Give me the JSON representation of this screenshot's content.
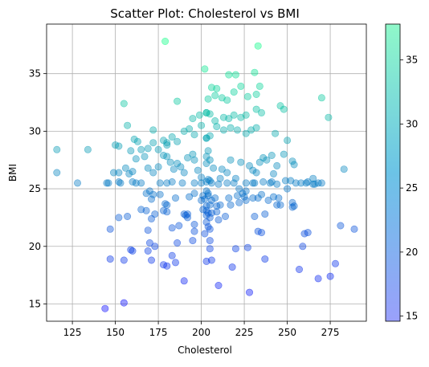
{
  "chart_data": {
    "type": "scatter",
    "title": "Scatter Plot: Cholesterol vs BMI",
    "xlabel": "Cholesterol",
    "ylabel": "BMI",
    "xlim": [
      110,
      296
    ],
    "ylim": [
      13.5,
      39.3
    ],
    "xticks": [
      125,
      150,
      175,
      200,
      225,
      250,
      275
    ],
    "yticks": [
      15,
      20,
      25,
      30,
      35
    ],
    "grid": true,
    "colormap": "winter",
    "point_alpha": 0.4,
    "colorbar": {
      "min": 14.6,
      "max": 37.8,
      "ticks": [
        15,
        20,
        25,
        30,
        35
      ]
    },
    "points": [
      [
        144,
        14.6
      ],
      [
        155,
        15.1
      ],
      [
        228,
        16.0
      ],
      [
        210,
        16.6
      ],
      [
        268,
        17.2
      ],
      [
        275,
        17.4
      ],
      [
        190,
        17.0
      ],
      [
        257,
        18.0
      ],
      [
        218,
        18.2
      ],
      [
        278,
        18.5
      ],
      [
        203,
        18.7
      ],
      [
        206,
        18.8
      ],
      [
        237,
        18.9
      ],
      [
        147,
        18.9
      ],
      [
        155,
        18.8
      ],
      [
        171,
        18.8
      ],
      [
        178,
        18.4
      ],
      [
        180,
        18.3
      ],
      [
        185,
        18.6
      ],
      [
        183,
        19.2
      ],
      [
        169,
        19.6
      ],
      [
        159,
        19.7
      ],
      [
        160,
        19.6
      ],
      [
        205,
        19.8
      ],
      [
        220,
        19.8
      ],
      [
        227,
        19.9
      ],
      [
        259,
        20.0
      ],
      [
        170,
        20.3
      ],
      [
        173,
        20.0
      ],
      [
        186,
        20.3
      ],
      [
        195,
        20.5
      ],
      [
        281,
        21.8
      ],
      [
        289,
        21.5
      ],
      [
        233,
        21.3
      ],
      [
        235,
        21.2
      ],
      [
        262,
        21.2
      ],
      [
        260,
        21.1
      ],
      [
        196,
        21.3
      ],
      [
        205,
        21.5
      ],
      [
        169,
        21.4
      ],
      [
        147,
        21.5
      ],
      [
        183,
        21.6
      ],
      [
        187,
        21.8
      ],
      [
        196,
        21.9
      ],
      [
        210,
        22.3
      ],
      [
        152,
        22.5
      ],
      [
        157,
        22.6
      ],
      [
        171,
        22.4
      ],
      [
        173,
        22.8
      ],
      [
        180,
        23.0
      ],
      [
        190,
        22.8
      ],
      [
        192,
        22.8
      ],
      [
        192,
        22.5
      ],
      [
        191,
        22.7
      ],
      [
        203,
        22.7
      ],
      [
        206,
        22.9
      ],
      [
        209,
        23.0
      ],
      [
        214,
        22.6
      ],
      [
        231,
        22.6
      ],
      [
        237,
        22.8
      ],
      [
        178,
        23.1
      ],
      [
        165,
        23.2
      ],
      [
        168,
        23.1
      ],
      [
        180,
        23.6
      ],
      [
        179,
        23.7
      ],
      [
        201,
        23.2
      ],
      [
        203,
        23.5
      ],
      [
        200,
        24.0
      ],
      [
        205,
        23.6
      ],
      [
        206,
        24.0
      ],
      [
        209,
        23.5
      ],
      [
        211,
        23.6
      ],
      [
        217,
        23.6
      ],
      [
        222,
        23.8
      ],
      [
        226,
        24.0
      ],
      [
        233,
        24.2
      ],
      [
        239,
        24.0
      ],
      [
        244,
        23.6
      ],
      [
        246,
        23.6
      ],
      [
        253,
        23.4
      ],
      [
        253,
        23.8
      ],
      [
        254,
        23.5
      ],
      [
        171,
        24.1
      ],
      [
        172,
        24.5
      ],
      [
        168,
        24.6
      ],
      [
        170,
        24.8
      ],
      [
        176,
        24.5
      ],
      [
        185,
        24.2
      ],
      [
        193,
        24.3
      ],
      [
        196,
        24.6
      ],
      [
        201,
        24.4
      ],
      [
        204,
        24.6
      ],
      [
        208,
        24.2
      ],
      [
        216,
        24.2
      ],
      [
        221,
        24.4
      ],
      [
        224,
        24.6
      ],
      [
        225,
        24.3
      ],
      [
        230,
        24.2
      ],
      [
        235,
        24.5
      ],
      [
        242,
        24.3
      ],
      [
        245,
        24.2
      ],
      [
        250,
        25.0
      ],
      [
        145,
        25.5
      ],
      [
        146,
        25.5
      ],
      [
        152,
        25.6
      ],
      [
        153,
        25.5
      ],
      [
        160,
        25.6
      ],
      [
        162,
        25.5
      ],
      [
        165,
        25.5
      ],
      [
        176,
        25.5
      ],
      [
        180,
        25.5
      ],
      [
        183,
        25.6
      ],
      [
        189,
        25.5
      ],
      [
        196,
        25.5
      ],
      [
        200,
        25.5
      ],
      [
        203,
        25.6
      ],
      [
        206,
        25.5
      ],
      [
        210,
        25.4
      ],
      [
        215,
        25.5
      ],
      [
        219,
        25.5
      ],
      [
        226,
        25.5
      ],
      [
        230,
        25.5
      ],
      [
        236,
        25.6
      ],
      [
        240,
        25.5
      ],
      [
        244,
        25.4
      ],
      [
        249,
        25.7
      ],
      [
        252,
        25.7
      ],
      [
        255,
        25.5
      ],
      [
        258,
        25.5
      ],
      [
        262,
        25.6
      ],
      [
        265,
        25.4
      ],
      [
        266,
        25.4
      ],
      [
        268,
        25.5
      ],
      [
        270,
        25.5
      ],
      [
        283,
        26.7
      ],
      [
        265,
        25.9
      ],
      [
        261,
        25.5
      ],
      [
        254,
        27.1
      ],
      [
        253,
        27.4
      ],
      [
        248,
        28.0
      ],
      [
        244,
        27.0
      ],
      [
        242,
        26.3
      ],
      [
        241,
        27.9
      ],
      [
        238,
        27.5
      ],
      [
        236,
        27.7
      ],
      [
        234,
        27.3
      ],
      [
        232,
        26.4
      ],
      [
        230,
        26.6
      ],
      [
        228,
        27.0
      ],
      [
        223,
        27.3
      ],
      [
        220,
        25.9
      ],
      [
        217,
        27.5
      ],
      [
        215,
        26.4
      ],
      [
        212,
        26.7
      ],
      [
        211,
        25.9
      ],
      [
        207,
        26.8
      ],
      [
        203,
        27.2
      ],
      [
        200,
        26.0
      ],
      [
        198,
        26.6
      ],
      [
        196,
        27.5
      ],
      [
        195,
        28.0
      ],
      [
        192,
        27.7
      ],
      [
        190,
        26.4
      ],
      [
        188,
        26.9
      ],
      [
        186,
        27.2
      ],
      [
        184,
        26.7
      ],
      [
        182,
        27.3
      ],
      [
        180,
        27.8
      ],
      [
        178,
        27.9
      ],
      [
        175,
        26.9
      ],
      [
        172,
        26.4
      ],
      [
        169,
        26.8
      ],
      [
        167,
        27.8
      ],
      [
        162,
        27.6
      ],
      [
        160,
        26.5
      ],
      [
        158,
        26.3
      ],
      [
        156,
        26.8
      ],
      [
        152,
        26.4
      ],
      [
        149,
        26.4
      ],
      [
        116,
        26.4
      ],
      [
        116,
        28.4
      ],
      [
        128,
        25.5
      ],
      [
        134,
        28.4
      ],
      [
        150,
        28.8
      ],
      [
        152,
        28.7
      ],
      [
        159,
        28.3
      ],
      [
        161,
        29.3
      ],
      [
        165,
        28.4
      ],
      [
        169,
        28.5
      ],
      [
        172,
        29.0
      ],
      [
        175,
        28.4
      ],
      [
        178,
        29.2
      ],
      [
        180,
        28.8
      ],
      [
        183,
        29.5
      ],
      [
        186,
        29.1
      ],
      [
        190,
        30.0
      ],
      [
        193,
        30.2
      ],
      [
        196,
        29.7
      ],
      [
        200,
        30.5
      ],
      [
        203,
        29.4
      ],
      [
        205,
        29.6
      ],
      [
        209,
        30.4
      ],
      [
        213,
        30.1
      ],
      [
        217,
        30.3
      ],
      [
        221,
        30.1
      ],
      [
        226,
        29.8
      ],
      [
        229,
        30.1
      ],
      [
        232,
        30.3
      ],
      [
        243,
        29.8
      ],
      [
        250,
        29.2
      ],
      [
        157,
        30.5
      ],
      [
        163,
        29.1
      ],
      [
        172,
        30.1
      ],
      [
        180,
        29.0
      ],
      [
        195,
        31.1
      ],
      [
        199,
        31.4
      ],
      [
        203,
        31.6
      ],
      [
        205,
        31.5
      ],
      [
        208,
        30.9
      ],
      [
        213,
        31.2
      ],
      [
        216,
        31.1
      ],
      [
        219,
        31.4
      ],
      [
        223,
        31.2
      ],
      [
        226,
        31.4
      ],
      [
        232,
        31.9
      ],
      [
        235,
        31.6
      ],
      [
        246,
        32.2
      ],
      [
        248,
        31.9
      ],
      [
        155,
        32.4
      ],
      [
        186,
        32.6
      ],
      [
        204,
        32.8
      ],
      [
        208,
        33.1
      ],
      [
        212,
        32.9
      ],
      [
        215,
        32.7
      ],
      [
        219,
        33.4
      ],
      [
        227,
        33.0
      ],
      [
        232,
        33.2
      ],
      [
        270,
        32.9
      ],
      [
        274,
        31.2
      ],
      [
        206,
        33.8
      ],
      [
        209,
        33.7
      ],
      [
        223,
        33.9
      ],
      [
        216,
        34.9
      ],
      [
        220,
        34.9
      ],
      [
        234,
        33.9
      ],
      [
        202,
        35.4
      ],
      [
        231,
        35.1
      ],
      [
        179,
        37.8
      ],
      [
        233,
        37.4
      ],
      [
        203,
        31.6
      ],
      [
        203,
        29.4
      ],
      [
        204,
        28.3
      ],
      [
        203,
        27.8
      ],
      [
        205,
        27.5
      ],
      [
        204,
        25.8
      ],
      [
        205,
        25.7
      ],
      [
        203,
        24.8
      ],
      [
        204,
        24.4
      ],
      [
        202,
        24.1
      ],
      [
        203,
        23.1
      ],
      [
        204,
        22.9
      ],
      [
        205,
        22.5
      ],
      [
        203,
        22.1
      ],
      [
        204,
        21.7
      ],
      [
        202,
        21.1
      ],
      [
        205,
        20.5
      ],
      [
        226,
        24.8
      ],
      [
        241,
        25.6
      ],
      [
        231,
        25.5
      ],
      [
        222,
        25.0
      ]
    ]
  }
}
